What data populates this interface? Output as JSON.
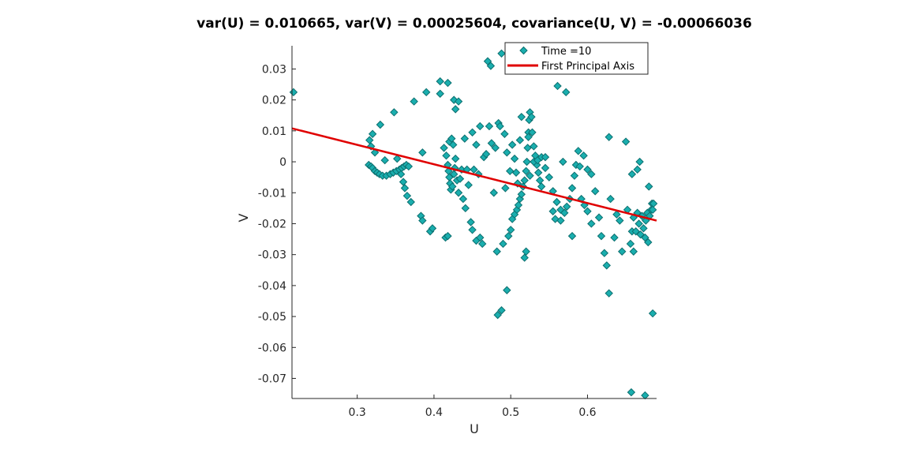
{
  "chart_data": {
    "type": "scatter",
    "title": "var(U) = 0.010665, var(V) = 0.00025604, covariance(U, V) = -0.00066036",
    "xlabel": "U",
    "ylabel": "V",
    "xlim": [
      0.215,
      0.69
    ],
    "ylim": [
      -0.0765,
      0.0375
    ],
    "xticks": [
      0.3,
      0.4,
      0.5,
      0.6
    ],
    "xtick_labels": [
      "0.3",
      "0.4",
      "0.5",
      "0.6"
    ],
    "yticks": [
      0.03,
      0.02,
      0.01,
      0,
      -0.01,
      -0.02,
      -0.03,
      -0.04,
      -0.05,
      -0.06,
      -0.07
    ],
    "ytick_labels": [
      "0.03",
      "0.02",
      "0.01",
      "0",
      "-0.01",
      "-0.02",
      "-0.03",
      "-0.04",
      "-0.05",
      "-0.06",
      "-0.07"
    ],
    "grid": false,
    "legend_position": "top-right",
    "series": [
      {
        "name": "Time =10",
        "kind": "markers",
        "marker": "diamond",
        "color": "#1aaeae",
        "edge_color": "#0d6f6f",
        "points": [
          [
            0.217,
            0.0225
          ],
          [
            0.315,
            -0.001
          ],
          [
            0.318,
            -0.0015
          ],
          [
            0.32,
            -0.002
          ],
          [
            0.323,
            -0.003
          ],
          [
            0.326,
            -0.0035
          ],
          [
            0.329,
            -0.004
          ],
          [
            0.333,
            -0.0045
          ],
          [
            0.338,
            -0.0045
          ],
          [
            0.343,
            -0.004
          ],
          [
            0.347,
            -0.0035
          ],
          [
            0.351,
            -0.003
          ],
          [
            0.355,
            -0.0025
          ],
          [
            0.358,
            -0.002
          ],
          [
            0.361,
            -0.0015
          ],
          [
            0.364,
            -0.001
          ],
          [
            0.367,
            -0.0015
          ],
          [
            0.316,
            0.007
          ],
          [
            0.318,
            0.005
          ],
          [
            0.32,
            0.009
          ],
          [
            0.323,
            0.003
          ],
          [
            0.33,
            0.012
          ],
          [
            0.336,
            0.0005
          ],
          [
            0.348,
            0.016
          ],
          [
            0.352,
            0.001
          ],
          [
            0.357,
            -0.004
          ],
          [
            0.36,
            -0.0065
          ],
          [
            0.362,
            -0.0085
          ],
          [
            0.365,
            -0.011
          ],
          [
            0.37,
            -0.013
          ],
          [
            0.374,
            0.0195
          ],
          [
            0.385,
            0.003
          ],
          [
            0.39,
            0.0225
          ],
          [
            0.383,
            -0.0175
          ],
          [
            0.385,
            -0.019
          ],
          [
            0.395,
            -0.0225
          ],
          [
            0.398,
            -0.0215
          ],
          [
            0.408,
            0.026
          ],
          [
            0.408,
            0.022
          ],
          [
            0.415,
            -0.0245
          ],
          [
            0.418,
            -0.024
          ],
          [
            0.418,
            0.0255
          ],
          [
            0.42,
            0.0065
          ],
          [
            0.423,
            0.0075
          ],
          [
            0.425,
            0.0055
          ],
          [
            0.426,
            0.02
          ],
          [
            0.428,
            0.017
          ],
          [
            0.432,
            0.0195
          ],
          [
            0.413,
            0.0045
          ],
          [
            0.416,
            0.002
          ],
          [
            0.418,
            -0.001
          ],
          [
            0.419,
            -0.003
          ],
          [
            0.42,
            -0.005
          ],
          [
            0.421,
            -0.007
          ],
          [
            0.422,
            -0.009
          ],
          [
            0.424,
            -0.008
          ],
          [
            0.426,
            -0.004
          ],
          [
            0.427,
            -0.002
          ],
          [
            0.428,
            0.001
          ],
          [
            0.43,
            -0.006
          ],
          [
            0.432,
            -0.01
          ],
          [
            0.434,
            -0.0055
          ],
          [
            0.436,
            -0.0025
          ],
          [
            0.438,
            -0.012
          ],
          [
            0.441,
            -0.015
          ],
          [
            0.443,
            -0.0025
          ],
          [
            0.445,
            -0.0075
          ],
          [
            0.448,
            -0.0195
          ],
          [
            0.45,
            -0.022
          ],
          [
            0.452,
            -0.0025
          ],
          [
            0.455,
            -0.0255
          ],
          [
            0.458,
            -0.004
          ],
          [
            0.46,
            -0.0245
          ],
          [
            0.463,
            -0.0265
          ],
          [
            0.44,
            0.0075
          ],
          [
            0.45,
            0.0095
          ],
          [
            0.455,
            0.0055
          ],
          [
            0.46,
            0.0115
          ],
          [
            0.465,
            0.0015
          ],
          [
            0.468,
            0.0025
          ],
          [
            0.47,
            0.0325
          ],
          [
            0.472,
            0.0115
          ],
          [
            0.474,
            0.031
          ],
          [
            0.475,
            0.006
          ],
          [
            0.478,
            -0.01
          ],
          [
            0.48,
            0.0045
          ],
          [
            0.482,
            -0.029
          ],
          [
            0.484,
            0.0125
          ],
          [
            0.486,
            0.0115
          ],
          [
            0.488,
            0.035
          ],
          [
            0.49,
            -0.0265
          ],
          [
            0.492,
            0.009
          ],
          [
            0.493,
            -0.0085
          ],
          [
            0.495,
            0.003
          ],
          [
            0.497,
            -0.024
          ],
          [
            0.499,
            -0.003
          ],
          [
            0.483,
            -0.0495
          ],
          [
            0.488,
            -0.048
          ],
          [
            0.495,
            -0.0415
          ],
          [
            0.5,
            -0.022
          ],
          [
            0.502,
            -0.0185
          ],
          [
            0.505,
            -0.017
          ],
          [
            0.508,
            -0.0155
          ],
          [
            0.51,
            -0.014
          ],
          [
            0.512,
            -0.012
          ],
          [
            0.514,
            -0.0105
          ],
          [
            0.516,
            -0.008
          ],
          [
            0.518,
            -0.006
          ],
          [
            0.52,
            -0.003
          ],
          [
            0.521,
            0.0
          ],
          [
            0.522,
            0.0045
          ],
          [
            0.523,
            0.0095
          ],
          [
            0.524,
            0.0135
          ],
          [
            0.525,
            0.016
          ],
          [
            0.527,
            0.0145
          ],
          [
            0.528,
            0.0095
          ],
          [
            0.53,
            0.005
          ],
          [
            0.532,
            0.002
          ],
          [
            0.534,
            -0.001
          ],
          [
            0.536,
            -0.0035
          ],
          [
            0.538,
            -0.006
          ],
          [
            0.54,
            -0.008
          ],
          [
            0.502,
            0.0055
          ],
          [
            0.505,
            0.001
          ],
          [
            0.507,
            -0.0035
          ],
          [
            0.509,
            -0.007
          ],
          [
            0.512,
            0.007
          ],
          [
            0.514,
            0.0145
          ],
          [
            0.516,
            0.0365
          ],
          [
            0.518,
            -0.031
          ],
          [
            0.52,
            -0.029
          ],
          [
            0.523,
            0.008
          ],
          [
            0.525,
            -0.0045
          ],
          [
            0.53,
            0.0
          ],
          [
            0.535,
            0.0005
          ],
          [
            0.54,
            0.0015
          ],
          [
            0.545,
            0.0015
          ],
          [
            0.548,
            0.0325
          ],
          [
            0.552,
            0.0345
          ],
          [
            0.555,
            -0.016
          ],
          [
            0.558,
            -0.0185
          ],
          [
            0.561,
            0.0245
          ],
          [
            0.565,
            -0.019
          ],
          [
            0.568,
            0.0
          ],
          [
            0.545,
            -0.002
          ],
          [
            0.55,
            -0.005
          ],
          [
            0.555,
            -0.0095
          ],
          [
            0.56,
            -0.013
          ],
          [
            0.565,
            -0.0155
          ],
          [
            0.57,
            -0.0165
          ],
          [
            0.573,
            -0.0145
          ],
          [
            0.577,
            -0.012
          ],
          [
            0.58,
            -0.0085
          ],
          [
            0.583,
            -0.0045
          ],
          [
            0.585,
            -0.001
          ],
          [
            0.588,
            0.0035
          ],
          [
            0.592,
            -0.012
          ],
          [
            0.596,
            -0.014
          ],
          [
            0.6,
            -0.016
          ],
          [
            0.605,
            -0.02
          ],
          [
            0.572,
            0.0225
          ],
          [
            0.58,
            -0.024
          ],
          [
            0.59,
            -0.0015
          ],
          [
            0.595,
            0.002
          ],
          [
            0.6,
            -0.0025
          ],
          [
            0.605,
            -0.004
          ],
          [
            0.61,
            -0.0095
          ],
          [
            0.615,
            -0.018
          ],
          [
            0.618,
            -0.024
          ],
          [
            0.622,
            -0.0295
          ],
          [
            0.625,
            -0.0335
          ],
          [
            0.628,
            -0.0425
          ],
          [
            0.628,
            0.008
          ],
          [
            0.63,
            -0.012
          ],
          [
            0.635,
            -0.0245
          ],
          [
            0.638,
            -0.017
          ],
          [
            0.642,
            -0.019
          ],
          [
            0.645,
            -0.029
          ],
          [
            0.65,
            0.0065
          ],
          [
            0.652,
            -0.0155
          ],
          [
            0.656,
            -0.0265
          ],
          [
            0.658,
            -0.0225
          ],
          [
            0.66,
            -0.018
          ],
          [
            0.66,
            -0.029
          ],
          [
            0.663,
            -0.0225
          ],
          [
            0.657,
            -0.0745
          ],
          [
            0.675,
            -0.0755
          ],
          [
            0.665,
            -0.0165
          ],
          [
            0.667,
            -0.02
          ],
          [
            0.669,
            -0.0235
          ],
          [
            0.671,
            -0.0175
          ],
          [
            0.673,
            -0.0215
          ],
          [
            0.675,
            -0.0245
          ],
          [
            0.676,
            -0.019
          ],
          [
            0.678,
            -0.0165
          ],
          [
            0.679,
            -0.026
          ],
          [
            0.68,
            -0.008
          ],
          [
            0.681,
            -0.0175
          ],
          [
            0.683,
            -0.0155
          ],
          [
            0.684,
            -0.0135
          ],
          [
            0.685,
            -0.0155
          ],
          [
            0.686,
            -0.0135
          ],
          [
            0.685,
            -0.049
          ],
          [
            0.665,
            -0.0025
          ],
          [
            0.658,
            -0.004
          ],
          [
            0.668,
            0.0
          ]
        ]
      },
      {
        "name": "First Principal Axis",
        "kind": "line",
        "color": "#e00000",
        "x": [
          0.215,
          0.69
        ],
        "y": [
          0.0108,
          -0.019
        ]
      }
    ]
  }
}
